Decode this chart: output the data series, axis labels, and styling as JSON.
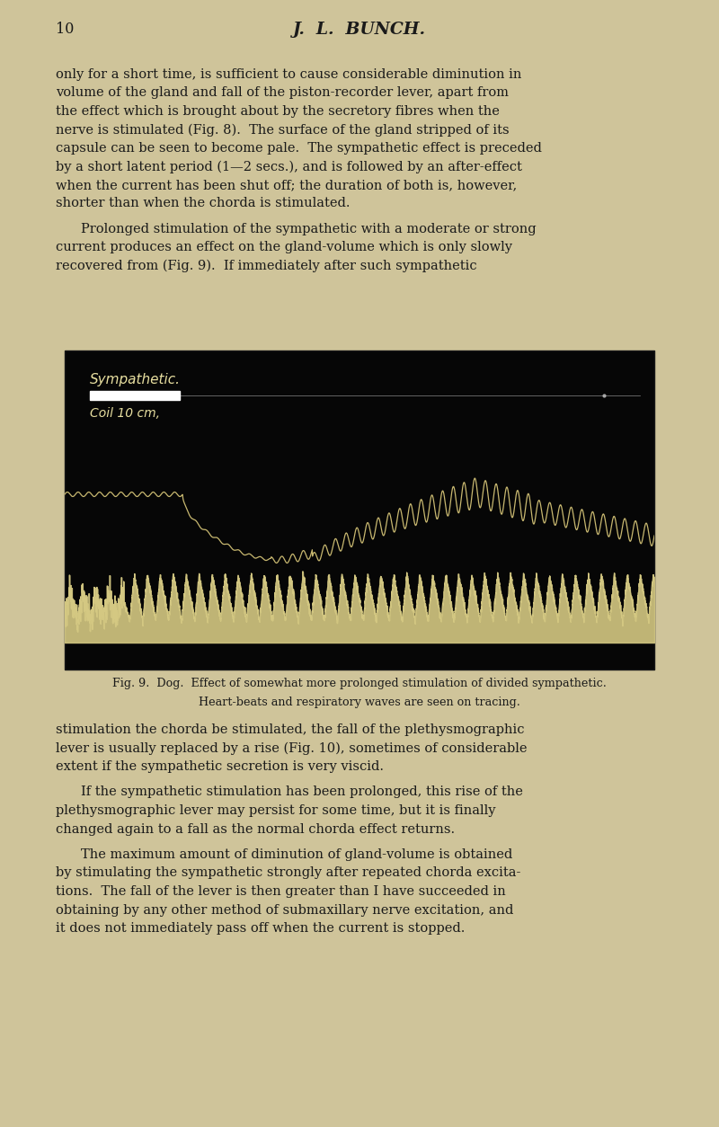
{
  "page_bg": "#cfc49a",
  "page_number": "10",
  "page_header": "J.  L.  BUNCH.",
  "body_text_color": "#1a1a1a",
  "figure_bg": "#060606",
  "fig_caption_line1": "Fig. 9.  Dog.  Effect of somewhat more prolonged stimulation of divided sympathetic.",
  "fig_caption_line2": "Heart-beats and respiratory waves are seen on tracing.",
  "label_sympathetic": "Sympathetic.",
  "label_coil": "Coil 10 cm,",
  "trace_color": "#c8b870",
  "bottom_trace_color": "#d4c882"
}
